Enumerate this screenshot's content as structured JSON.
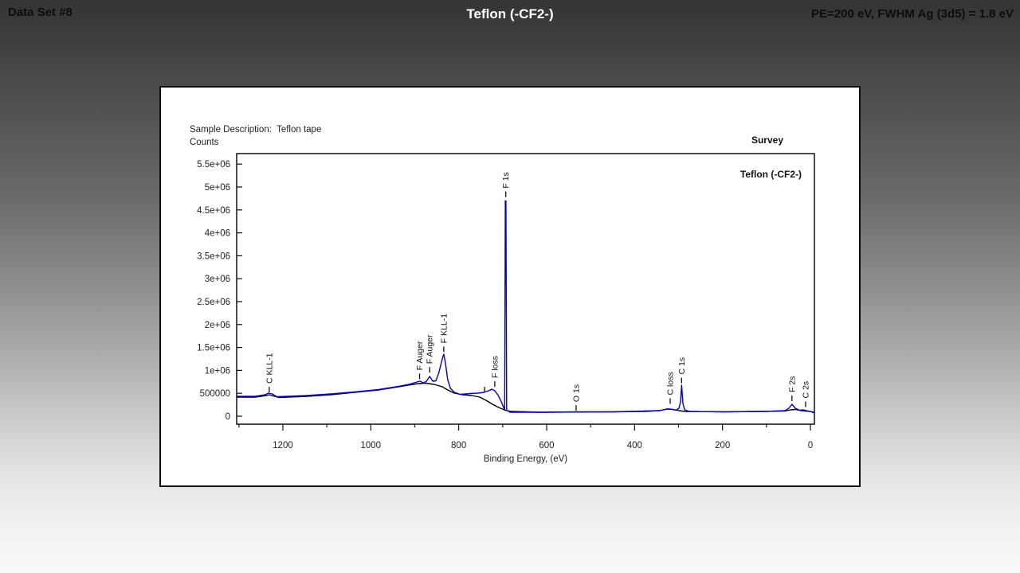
{
  "header": {
    "left": "Data Set #8",
    "center": "Teflon (-CF2-)",
    "right": "PE=200 eV, FWHM Ag (3d5) = 1.8 eV"
  },
  "panel": {
    "sample_description": "Sample Description:  Teflon tape",
    "counts_label": "Counts",
    "survey_label": "Survey",
    "trace_label": "Teflon (-CF2-)"
  },
  "colors": {
    "survey_curve": "#0000cd",
    "background_curve": "#000000",
    "axis": "#111111",
    "panel_bg": "#ffffff"
  },
  "chart_data": {
    "type": "line",
    "title": "Survey",
    "xlabel": "Binding Energy, (eV)",
    "ylabel": "Counts",
    "x_axis_reversed": true,
    "xlim": [
      1305,
      -9
    ],
    "ylim": [
      0,
      5730000
    ],
    "grid": false,
    "x_ticks": [
      {
        "v": 1200,
        "label": "1200"
      },
      {
        "v": 1000,
        "label": "1000"
      },
      {
        "v": 800,
        "label": "800"
      },
      {
        "v": 600,
        "label": "600"
      },
      {
        "v": 400,
        "label": "400"
      },
      {
        "v": 200,
        "label": "200"
      },
      {
        "v": 0,
        "label": "0"
      }
    ],
    "x_minor_ticks": [
      1300,
      1100,
      900,
      700,
      500,
      300,
      100
    ],
    "y_ticks": [
      {
        "v": 0,
        "label": "0"
      },
      {
        "v": 500000,
        "label": "500000"
      },
      {
        "v": 1000000,
        "label": "1e+06"
      },
      {
        "v": 1500000,
        "label": "1.5e+06"
      },
      {
        "v": 2000000,
        "label": "2e+06"
      },
      {
        "v": 2500000,
        "label": "2.5e+06"
      },
      {
        "v": 3000000,
        "label": "3e+06"
      },
      {
        "v": 3500000,
        "label": "3.5e+06"
      },
      {
        "v": 4000000,
        "label": "4e+06"
      },
      {
        "v": 4500000,
        "label": "4.5e+06"
      },
      {
        "v": 5000000,
        "label": "5e+06"
      },
      {
        "v": 5500000,
        "label": "5.5e+06"
      }
    ],
    "series": [
      {
        "name": "background-curve",
        "color": "#000000",
        "points": [
          [
            1305,
            417000
          ],
          [
            1263,
            417000
          ],
          [
            1238,
            451000
          ],
          [
            1231,
            469000
          ],
          [
            1222,
            443000
          ],
          [
            1209,
            408000
          ],
          [
            1146,
            434000
          ],
          [
            1091,
            469000
          ],
          [
            1037,
            521000
          ],
          [
            982,
            573000
          ],
          [
            937,
            642000
          ],
          [
            910,
            686000
          ],
          [
            892,
            712000
          ],
          [
            874,
            720000
          ],
          [
            856,
            694000
          ],
          [
            837,
            642000
          ],
          [
            825,
            573000
          ],
          [
            810,
            503000
          ],
          [
            792,
            469000
          ],
          [
            770,
            451000
          ],
          [
            752,
            417000
          ],
          [
            738,
            347000
          ],
          [
            723,
            260000
          ],
          [
            709,
            191000
          ],
          [
            694,
            130000
          ],
          [
            680,
            104000
          ],
          [
            611,
            87000
          ],
          [
            448,
            96000
          ],
          [
            343,
            122000
          ],
          [
            325,
            156000
          ],
          [
            312,
            148000
          ],
          [
            299,
            122000
          ],
          [
            285,
            104000
          ],
          [
            194,
            96000
          ],
          [
            58,
            113000
          ],
          [
            45,
            139000
          ],
          [
            34,
            148000
          ],
          [
            22,
            122000
          ],
          [
            0,
            104000
          ],
          [
            -9,
            87000
          ]
        ]
      },
      {
        "name": "survey-curve",
        "color": "#0000cd",
        "points": [
          [
            1305,
            434000
          ],
          [
            1263,
            434000
          ],
          [
            1240,
            469000
          ],
          [
            1233,
            503000
          ],
          [
            1224,
            486000
          ],
          [
            1214,
            425000
          ],
          [
            1191,
            434000
          ],
          [
            1146,
            451000
          ],
          [
            1091,
            486000
          ],
          [
            1037,
            529000
          ],
          [
            982,
            582000
          ],
          [
            937,
            651000
          ],
          [
            910,
            703000
          ],
          [
            895,
            747000
          ],
          [
            888,
            764000
          ],
          [
            881,
            729000
          ],
          [
            874,
            755000
          ],
          [
            866,
            868000
          ],
          [
            859,
            764000
          ],
          [
            852,
            773000
          ],
          [
            845,
            955000
          ],
          [
            837,
            1267000
          ],
          [
            834,
            1354000
          ],
          [
            830,
            1146000
          ],
          [
            825,
            799000
          ],
          [
            819,
            608000
          ],
          [
            810,
            521000
          ],
          [
            796,
            477000
          ],
          [
            774,
            495000
          ],
          [
            756,
            503000
          ],
          [
            743,
            521000
          ],
          [
            732,
            556000
          ],
          [
            725,
            590000
          ],
          [
            718,
            556000
          ],
          [
            710,
            451000
          ],
          [
            703,
            312000
          ],
          [
            698,
            191000
          ],
          [
            695.5,
            150000
          ],
          [
            694,
            4700000
          ],
          [
            692.5,
            4700000
          ],
          [
            691,
            130000
          ],
          [
            683,
            87000
          ],
          [
            611,
            87000
          ],
          [
            533,
            96000
          ],
          [
            448,
            96000
          ],
          [
            375,
            104000
          ],
          [
            343,
            122000
          ],
          [
            328,
            156000
          ],
          [
            319,
            156000
          ],
          [
            306,
            130000
          ],
          [
            299,
            174000
          ],
          [
            295.5,
            312000
          ],
          [
            293,
            677000
          ],
          [
            290,
            278000
          ],
          [
            286,
            139000
          ],
          [
            275,
            104000
          ],
          [
            194,
            96000
          ],
          [
            103,
            104000
          ],
          [
            58,
            122000
          ],
          [
            49,
            174000
          ],
          [
            42,
            260000
          ],
          [
            34,
            174000
          ],
          [
            25,
            130000
          ],
          [
            16,
            139000
          ],
          [
            9,
            122000
          ],
          [
            0,
            104000
          ],
          [
            -9,
            69000
          ]
        ]
      }
    ],
    "annotations": [
      {
        "label": "C KLL-1",
        "eV": 1231,
        "base": 520000
      },
      {
        "label": "F Auger",
        "eV": 889,
        "base": 810000
      },
      {
        "label": "F Auger",
        "eV": 866,
        "base": 950000
      },
      {
        "label": "F KLL-1",
        "eV": 834,
        "base": 1400000
      },
      {
        "label": "",
        "eV": 741,
        "base": 520000
      },
      {
        "label": "F loss",
        "eV": 718,
        "base": 640000
      },
      {
        "label": "F 1s",
        "eV": 693,
        "base": 4780000
      },
      {
        "label": "O 1s",
        "eV": 533,
        "base": 120000
      },
      {
        "label": "C loss",
        "eV": 319,
        "base": 270000
      },
      {
        "label": "C 1s",
        "eV": 293,
        "base": 720000
      },
      {
        "label": "F 2s",
        "eV": 42,
        "base": 330000
      },
      {
        "label": "C 2s",
        "eV": 11,
        "base": 200000
      }
    ]
  }
}
